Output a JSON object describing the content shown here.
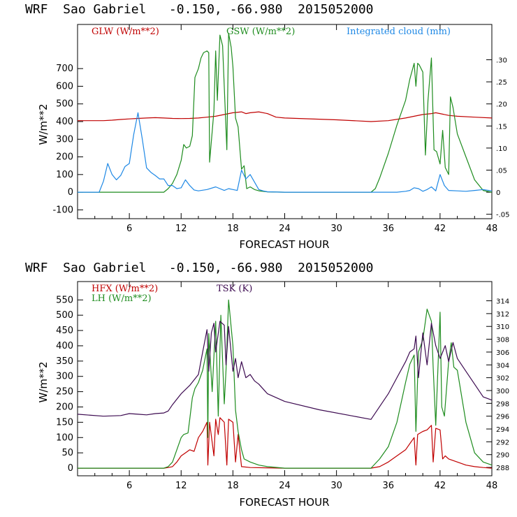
{
  "colors": {
    "red": "#c00000",
    "green": "#1e8c1e",
    "blue": "#1e88e5",
    "purple": "#3c0a50"
  },
  "chart_data": [
    {
      "type": "line",
      "title": "WRF  Sao Gabriel   -0.150, -66.980  2015052000",
      "xlabel": "FORECAST HOUR",
      "ylabel": "W/m**2",
      "xlim": [
        0,
        48
      ],
      "ylim": [
        -150,
        950
      ],
      "x_ticks": [
        "6",
        "12",
        "18",
        "24",
        "30",
        "36",
        "42",
        "48"
      ],
      "y_ticks": [
        "-100",
        "0",
        "100",
        "200",
        "300",
        "400",
        "500",
        "600",
        "700"
      ],
      "y2_ticks": [
        "-.05",
        "0",
        ".05",
        ".10",
        ".15",
        ".20",
        ".25",
        ".30"
      ],
      "y2lim": [
        -0.06,
        0.38
      ],
      "series": [
        {
          "name": "GLW (W/m**2)",
          "axis": "left",
          "color": "#c00000",
          "x": [
            0,
            3,
            4,
            5,
            6,
            7,
            8,
            9,
            10,
            11,
            12,
            13,
            14,
            15,
            16,
            17,
            18,
            19,
            19.5,
            20,
            21,
            22,
            23,
            24,
            30,
            34,
            36,
            38,
            39,
            40,
            41,
            41.5,
            42,
            43,
            44,
            46,
            48
          ],
          "values": [
            405,
            405,
            408,
            412,
            415,
            418,
            420,
            422,
            420,
            418,
            417,
            418,
            420,
            425,
            430,
            440,
            450,
            455,
            445,
            450,
            455,
            445,
            425,
            420,
            410,
            400,
            405,
            420,
            430,
            440,
            445,
            450,
            445,
            435,
            430,
            425,
            420
          ]
        },
        {
          "name": "GSW (W/m**2)",
          "axis": "left",
          "color": "#1e8c1e",
          "x": [
            0,
            10,
            10.5,
            11,
            11.5,
            12,
            12.3,
            12.6,
            13,
            13.3,
            13.6,
            14,
            14.3,
            14.6,
            15,
            15.2,
            15.3,
            15.8,
            16,
            16.2,
            16.5,
            16.8,
            17.3,
            17.5,
            17.8,
            18,
            18.3,
            18.6,
            19,
            19.3,
            19.6,
            20,
            20.5,
            21,
            22,
            24,
            34,
            34.5,
            35,
            36,
            37,
            38,
            38.5,
            39,
            39.2,
            39.4,
            39.6,
            40,
            40.3,
            40.6,
            41,
            41.3,
            41.6,
            42,
            42.3,
            42.6,
            43,
            43.2,
            43.5,
            44,
            45,
            46,
            47,
            48
          ],
          "values": [
            0,
            0,
            20,
            50,
            100,
            180,
            270,
            250,
            260,
            320,
            650,
            700,
            760,
            790,
            800,
            790,
            170,
            460,
            800,
            520,
            890,
            830,
            240,
            900,
            820,
            710,
            420,
            370,
            130,
            150,
            20,
            30,
            15,
            8,
            2,
            0,
            0,
            20,
            80,
            220,
            380,
            520,
            640,
            730,
            600,
            730,
            720,
            680,
            210,
            520,
            760,
            240,
            230,
            160,
            350,
            140,
            100,
            540,
            480,
            330,
            200,
            70,
            10,
            0
          ]
        },
        {
          "name": "Integrated cloud (mm)",
          "axis": "right",
          "color": "#1e88e5",
          "x": [
            0,
            2,
            2.5,
            3,
            3.5,
            4,
            4.5,
            5,
            5.5,
            6,
            6.5,
            7,
            7.5,
            8,
            8.5,
            9,
            9.5,
            10,
            10.5,
            11,
            11.5,
            12,
            12.5,
            13,
            13.5,
            14,
            15,
            16,
            17,
            17.5,
            18,
            18.5,
            19,
            19.5,
            20,
            21,
            21.5,
            22,
            24,
            30,
            34,
            36,
            37,
            38,
            38.5,
            39,
            39.5,
            40,
            40.5,
            41,
            41.5,
            42,
            42.5,
            43,
            44,
            45,
            46,
            47,
            48
          ],
          "values": [
            0,
            0,
            0,
            0.025,
            0.065,
            0.04,
            0.028,
            0.038,
            0.058,
            0.065,
            0.13,
            0.18,
            0.12,
            0.055,
            0.045,
            0.038,
            0.03,
            0.03,
            0.015,
            0.015,
            0.008,
            0.01,
            0.028,
            0.015,
            0.005,
            0.003,
            0.006,
            0.012,
            0.004,
            0.008,
            0.006,
            0.004,
            0.05,
            0.03,
            0.04,
            0.006,
            0.003,
            0.001,
            0,
            0,
            0,
            0,
            0,
            0.002,
            0.004,
            0.01,
            0.008,
            0.002,
            0.006,
            0.012,
            0.003,
            0.04,
            0.015,
            0.004,
            0.003,
            0.002,
            0.004,
            0.006,
            0.003
          ]
        }
      ]
    },
    {
      "type": "line",
      "title": "WRF  Sao Gabriel   -0.150, -66.980  2015052000",
      "xlabel": "FORECAST HOUR",
      "ylabel": "W/m**2",
      "xlim": [
        0,
        48
      ],
      "ylim": [
        -25,
        610
      ],
      "x_ticks": [
        "6",
        "12",
        "18",
        "24",
        "30",
        "36",
        "42",
        "48"
      ],
      "y_ticks": [
        "0",
        "50",
        "100",
        "150",
        "200",
        "250",
        "300",
        "350",
        "400",
        "450",
        "500",
        "550"
      ],
      "y2_ticks": [
        "288",
        "290",
        "292",
        "294",
        "296",
        "298",
        "300",
        "302",
        "304",
        "306",
        "308",
        "310",
        "312",
        "314"
      ],
      "y2lim": [
        286.7,
        317
      ],
      "series": [
        {
          "name": "HFX (W/m**2)",
          "axis": "left",
          "color": "#c00000",
          "x": [
            0,
            10,
            10.5,
            11,
            11.5,
            12,
            12.5,
            13,
            13.5,
            14,
            14.5,
            15,
            15.1,
            15.3,
            15.8,
            16,
            16.3,
            16.5,
            17,
            17.3,
            17.5,
            18,
            18.3,
            18.6,
            19,
            20,
            24,
            34,
            35,
            36,
            37,
            38,
            38.5,
            39,
            39.2,
            39.4,
            40,
            40.5,
            41,
            41.2,
            41.5,
            42,
            42.3,
            42.6,
            43,
            44,
            45,
            46,
            47,
            48
          ],
          "values": [
            0,
            0,
            2,
            5,
            20,
            40,
            50,
            60,
            55,
            100,
            120,
            150,
            10,
            150,
            40,
            160,
            110,
            165,
            150,
            10,
            160,
            150,
            20,
            110,
            5,
            2,
            0,
            0,
            5,
            20,
            40,
            60,
            80,
            100,
            10,
            110,
            120,
            125,
            140,
            20,
            130,
            125,
            30,
            40,
            30,
            20,
            10,
            5,
            2,
            0
          ]
        },
        {
          "name": "LH (W/m**2)",
          "axis": "left",
          "color": "#1e8c1e",
          "x": [
            0,
            10,
            10.5,
            11,
            11.5,
            12,
            12.3,
            12.8,
            13,
            13.3,
            13.6,
            14,
            14.5,
            15,
            15.1,
            15.2,
            15.6,
            16,
            16.3,
            16.6,
            17,
            17.2,
            17.5,
            17.8,
            18,
            18.3,
            18.6,
            19,
            19.3,
            20,
            21,
            22,
            24,
            34,
            35,
            36,
            37,
            38,
            38.5,
            39,
            39.2,
            39.5,
            40,
            40.3,
            40.5,
            41,
            41.2,
            41.5,
            42,
            42.2,
            42.5,
            43,
            43.3,
            43.6,
            44,
            45,
            46,
            47,
            48
          ],
          "values": [
            0,
            0,
            5,
            20,
            60,
            100,
            110,
            115,
            160,
            230,
            260,
            280,
            320,
            390,
            100,
            440,
            250,
            480,
            170,
            500,
            210,
            320,
            550,
            460,
            400,
            190,
            120,
            60,
            30,
            20,
            10,
            5,
            0,
            0,
            30,
            70,
            150,
            280,
            340,
            370,
            120,
            380,
            420,
            480,
            520,
            480,
            330,
            140,
            510,
            200,
            170,
            350,
            410,
            330,
            320,
            150,
            50,
            20,
            10
          ]
        },
        {
          "name": "TSK (K)",
          "axis": "right",
          "color": "#3c0a50",
          "x": [
            0,
            3,
            5,
            6,
            7,
            8,
            9,
            10,
            10.5,
            11,
            12,
            13,
            14,
            14.5,
            15,
            15.2,
            15.5,
            15.8,
            16,
            16.5,
            17,
            17.2,
            17.5,
            18,
            18.3,
            18.6,
            19,
            19.5,
            20,
            20.5,
            21,
            22,
            24,
            28,
            32,
            34,
            35,
            36,
            37,
            38,
            38.5,
            39,
            39.2,
            39.5,
            40,
            40.5,
            41,
            41.5,
            42,
            42.3,
            42.6,
            43,
            43.5,
            44,
            45,
            46,
            47,
            48
          ],
          "values": [
            296.3,
            296,
            296.1,
            296.4,
            296.3,
            296.2,
            296.4,
            296.5,
            296.8,
            297.8,
            299.5,
            300.8,
            302.5,
            306,
            309.5,
            303,
            309,
            310.5,
            306,
            310.8,
            310.2,
            304,
            310,
            303,
            305,
            302,
            304.5,
            302,
            302.5,
            301.5,
            301,
            299.5,
            298.3,
            297,
            296,
            295.5,
            297.5,
            299.5,
            302,
            304.5,
            306,
            306.5,
            308.5,
            302,
            309,
            304,
            310.5,
            307,
            305,
            306,
            307,
            304.5,
            307.5,
            305,
            303,
            301,
            299,
            298.5
          ]
        }
      ]
    }
  ]
}
